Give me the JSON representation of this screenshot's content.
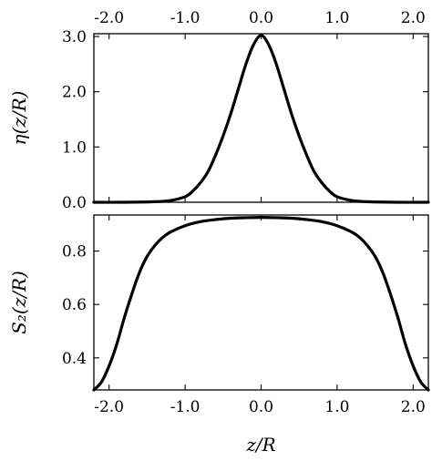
{
  "chart_data": [
    {
      "type": "line",
      "xlabel": "",
      "ylabel": "η(z/R)",
      "xlim": [
        -2.2,
        2.2
      ],
      "ylim": [
        0.0,
        3.05
      ],
      "xticks": [
        -2.0,
        -1.0,
        0.0,
        1.0,
        2.0
      ],
      "xtick_labels": [
        "-2.0",
        "-1.0",
        "0.0",
        "1.0",
        "2.0"
      ],
      "xtick_labels_position": "top",
      "yticks": [
        0.0,
        1.0,
        2.0,
        3.0
      ],
      "ytick_labels": [
        "0.0",
        "1.0",
        "2.0",
        "3.0"
      ],
      "grid": false,
      "series": [
        {
          "x": [
            -2.2,
            -1.8,
            -1.4,
            -1.2,
            -1.0,
            -0.9,
            -0.8,
            -0.7,
            -0.6,
            -0.5,
            -0.4,
            -0.3,
            -0.2,
            -0.1,
            0.0,
            0.1,
            0.2,
            0.3,
            0.4,
            0.5,
            0.6,
            0.7,
            0.8,
            0.9,
            1.0,
            1.2,
            1.4,
            1.8,
            2.2
          ],
          "y": [
            0.0,
            0.0,
            0.01,
            0.03,
            0.1,
            0.2,
            0.35,
            0.55,
            0.85,
            1.2,
            1.6,
            2.05,
            2.5,
            2.85,
            3.02,
            2.85,
            2.5,
            2.05,
            1.6,
            1.2,
            0.85,
            0.55,
            0.35,
            0.2,
            0.1,
            0.03,
            0.01,
            0.0,
            0.0
          ]
        }
      ]
    },
    {
      "type": "line",
      "xlabel": "z/R",
      "ylabel": "S₂(z/R)",
      "xlim": [
        -2.2,
        2.2
      ],
      "ylim": [
        0.28,
        0.935
      ],
      "xticks": [
        -2.0,
        -1.0,
        0.0,
        1.0,
        2.0
      ],
      "xtick_labels": [
        "-2.0",
        "-1.0",
        "0.0",
        "1.0",
        "2.0"
      ],
      "yticks": [
        0.4,
        0.6,
        0.8
      ],
      "ytick_labels": [
        "0.4",
        "0.6",
        "0.8"
      ],
      "grid": false,
      "series": [
        {
          "x": [
            -2.2,
            -2.1,
            -2.0,
            -1.9,
            -1.8,
            -1.7,
            -1.6,
            -1.5,
            -1.4,
            -1.3,
            -1.2,
            -1.0,
            -0.8,
            -0.6,
            -0.4,
            -0.2,
            0.0,
            0.2,
            0.4,
            0.6,
            0.8,
            1.0,
            1.2,
            1.3,
            1.4,
            1.5,
            1.6,
            1.7,
            1.8,
            1.9,
            2.0,
            2.1,
            2.2
          ],
          "y": [
            0.28,
            0.31,
            0.37,
            0.45,
            0.55,
            0.64,
            0.72,
            0.78,
            0.82,
            0.85,
            0.87,
            0.895,
            0.91,
            0.918,
            0.923,
            0.925,
            0.926,
            0.925,
            0.923,
            0.918,
            0.91,
            0.895,
            0.87,
            0.85,
            0.82,
            0.78,
            0.72,
            0.64,
            0.55,
            0.45,
            0.37,
            0.31,
            0.28
          ]
        }
      ]
    }
  ]
}
